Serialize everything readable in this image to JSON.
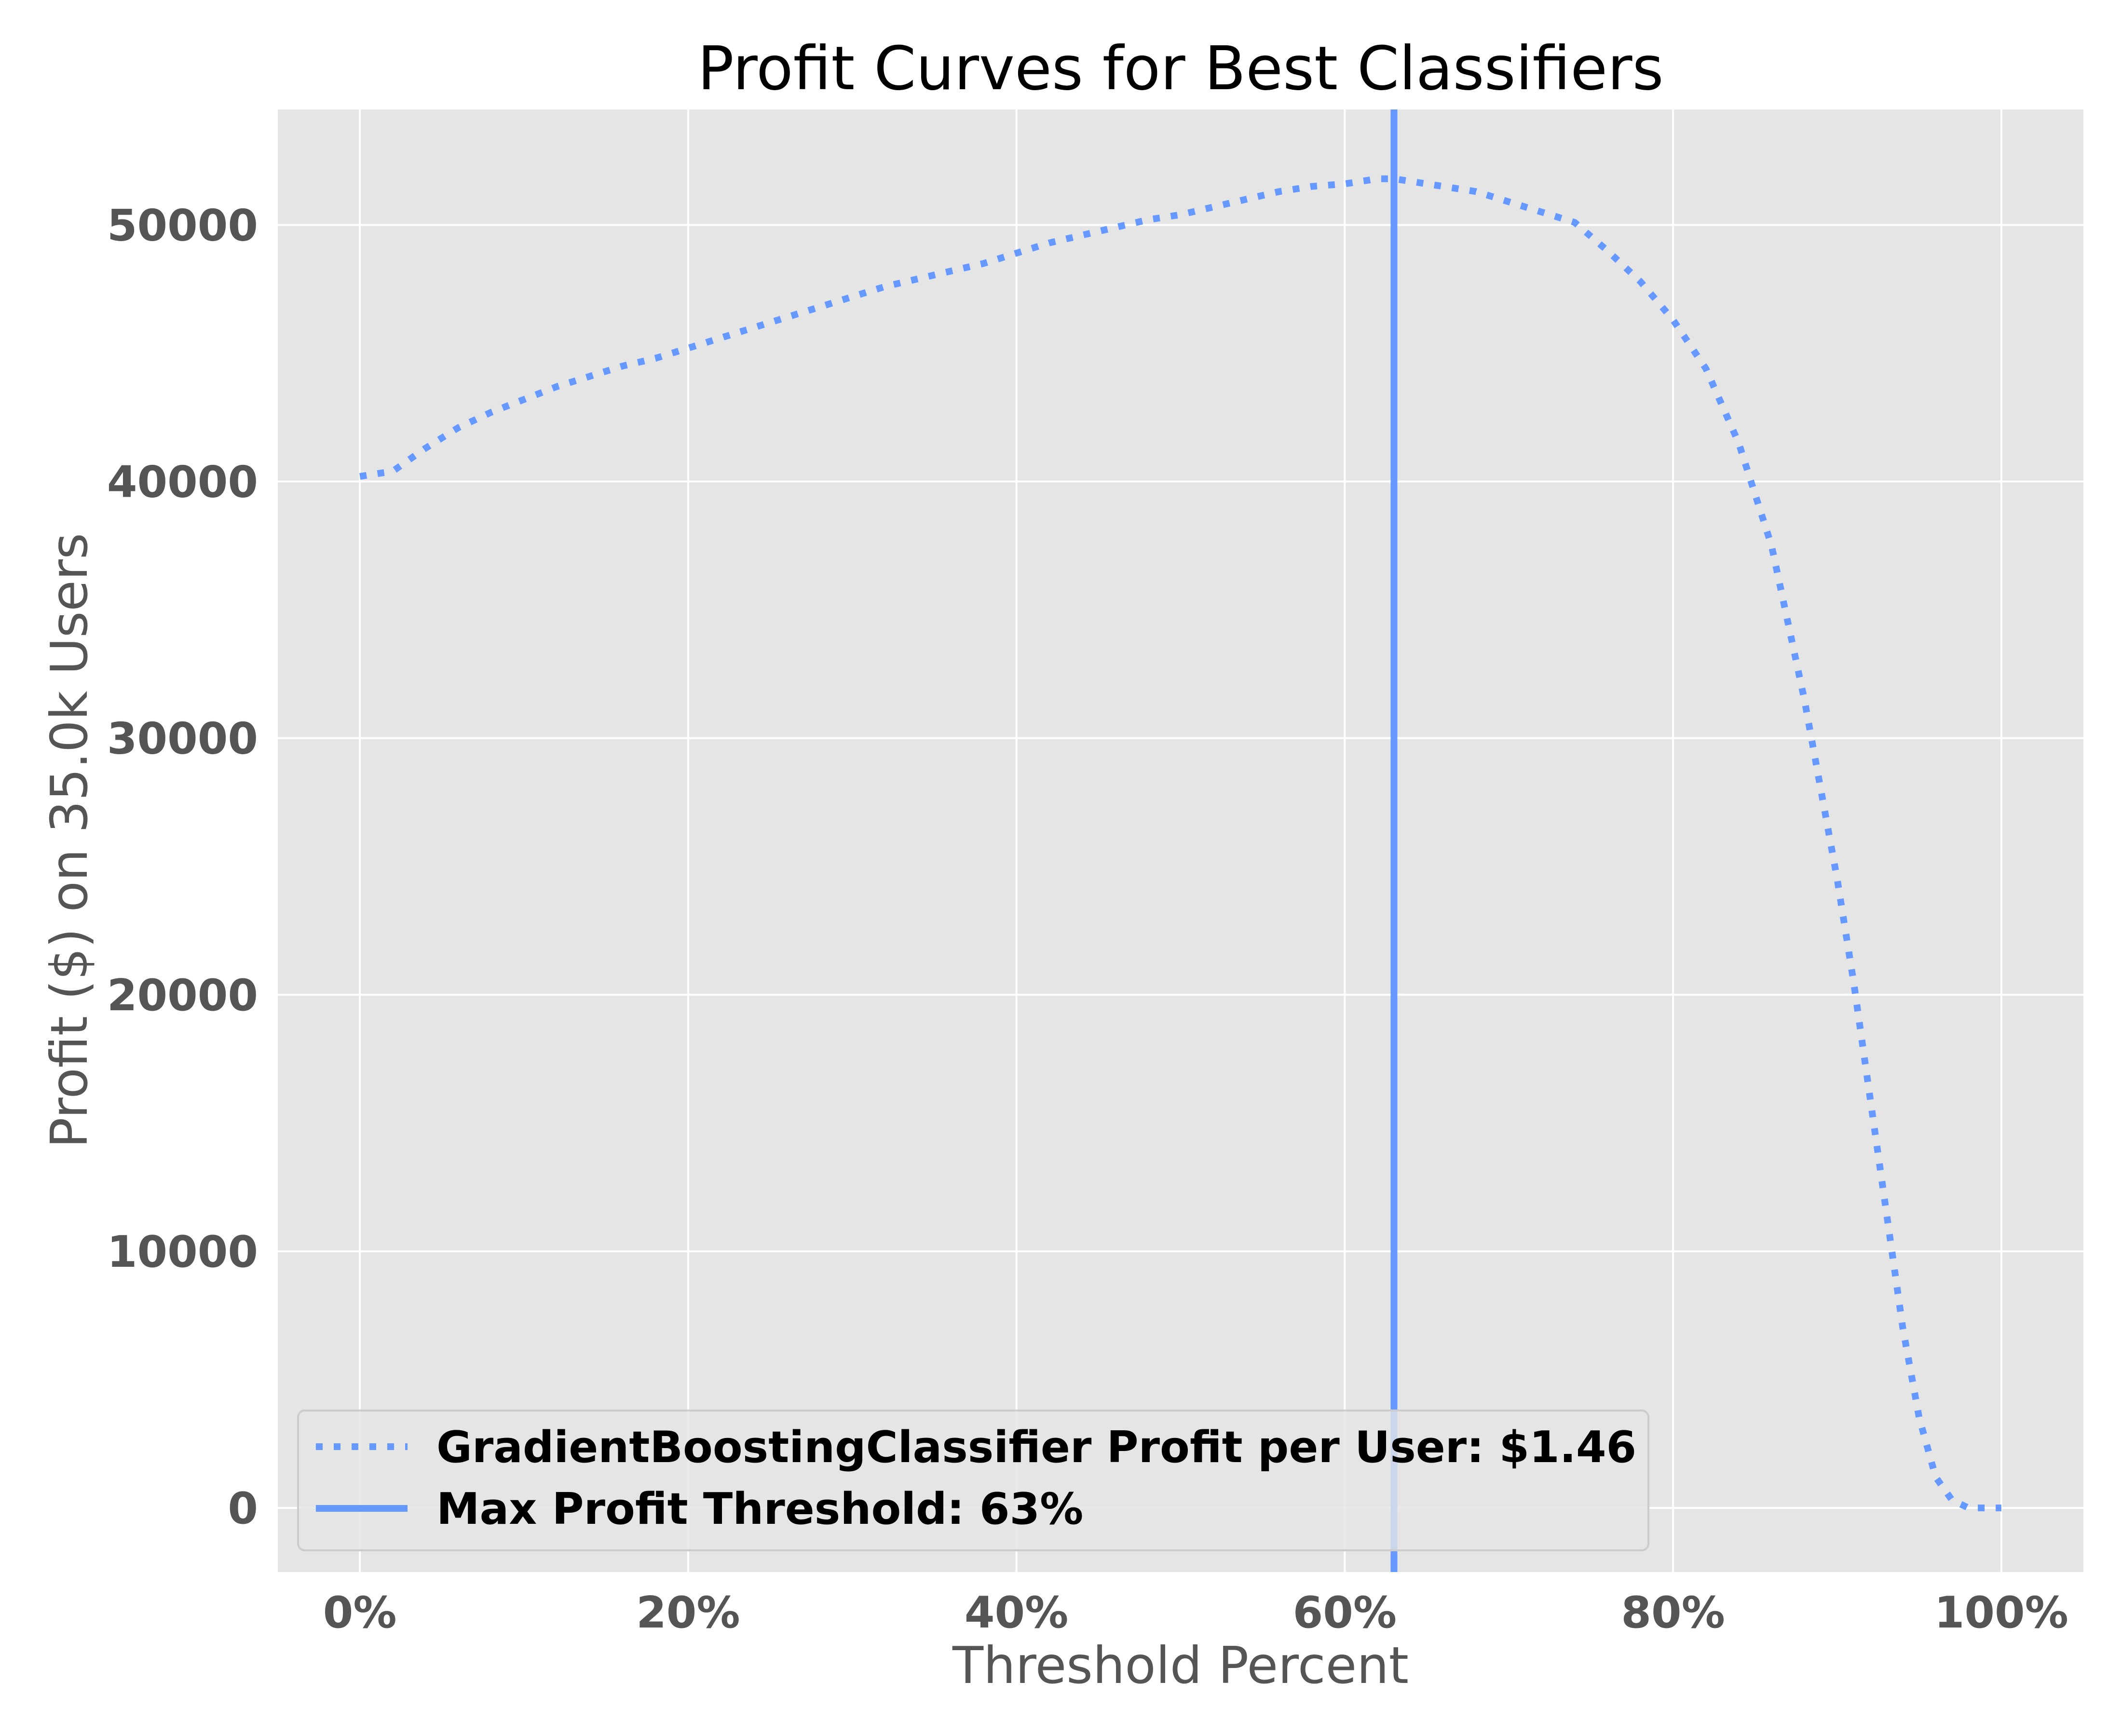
{
  "chart_data": {
    "type": "line",
    "title": "Profit Curves for Best Classifiers",
    "xlabel": "Threshold Percent",
    "ylabel": "Profit ($) on 35.0k Users",
    "xlim": [
      -5,
      105
    ],
    "ylim": [
      -2500,
      54500
    ],
    "x_ticks": [
      0,
      20,
      40,
      60,
      80,
      100
    ],
    "x_tick_labels": [
      "0%",
      "20%",
      "40%",
      "60%",
      "80%",
      "100%"
    ],
    "y_ticks": [
      0,
      10000,
      20000,
      30000,
      40000,
      50000
    ],
    "y_tick_labels": [
      "0",
      "10000",
      "20000",
      "30000",
      "40000",
      "50000"
    ],
    "grid": true,
    "legend_position": "lower-left",
    "colors": {
      "series": "#6699ff",
      "plot_bg": "#e5e5e5",
      "grid": "#ffffff"
    },
    "series": [
      {
        "name": "GradientBoostingClassifier Profit per User: $1.46",
        "style": "dotted",
        "x": [
          0,
          2,
          4,
          6,
          8,
          10,
          12,
          14,
          16,
          18,
          20,
          22,
          24,
          26,
          28,
          30,
          32,
          34,
          36,
          38,
          40,
          42,
          44,
          46,
          48,
          50,
          52,
          54,
          56,
          58,
          60,
          62,
          63,
          64,
          66,
          68,
          70,
          72,
          74,
          76,
          78,
          80,
          82,
          84,
          86,
          88,
          90,
          91,
          92,
          93,
          94,
          95,
          96,
          97,
          98,
          99,
          100
        ],
        "y": [
          40200,
          40400,
          41300,
          42100,
          42700,
          43200,
          43700,
          44100,
          44500,
          44800,
          45200,
          45600,
          46000,
          46400,
          46800,
          47200,
          47600,
          47900,
          48200,
          48500,
          48900,
          49300,
          49600,
          49900,
          50200,
          50400,
          50700,
          51000,
          51300,
          51500,
          51600,
          51800,
          51800,
          51700,
          51500,
          51300,
          50900,
          50500,
          50100,
          49000,
          47800,
          46300,
          44400,
          41500,
          37500,
          31500,
          24500,
          20500,
          16000,
          11500,
          7000,
          3500,
          1200,
          300,
          0,
          0,
          0
        ]
      }
    ],
    "vertical_lines": [
      {
        "name": "Max Profit Threshold: 63%",
        "x": 63,
        "style": "solid"
      }
    ]
  }
}
